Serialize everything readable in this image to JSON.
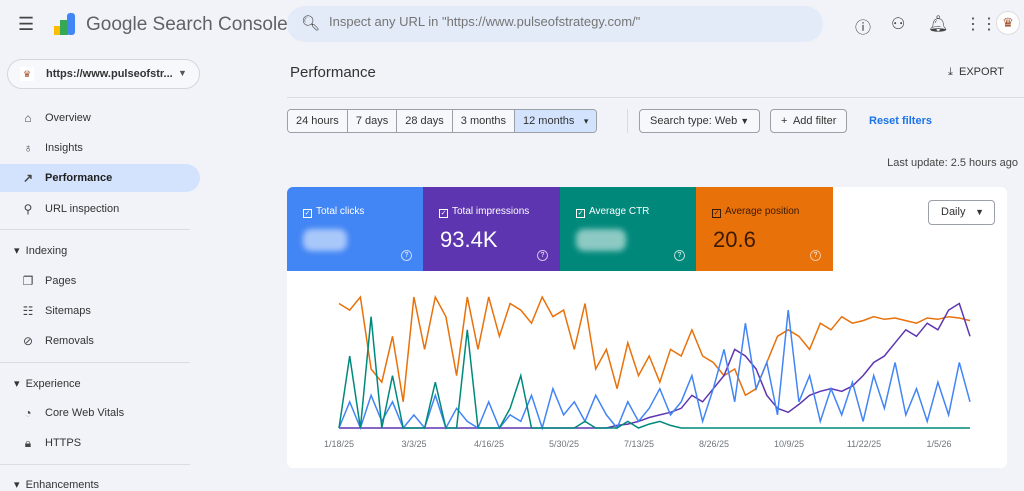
{
  "header": {
    "brand": "Google Search Console",
    "search_placeholder": "Inspect any URL in \"https://www.pulseofstrategy.com/\"",
    "icons": [
      "help-icon",
      "manage-users-icon",
      "notifications-icon",
      "apps-grid-icon",
      "avatar"
    ]
  },
  "property": {
    "label": "https://www.pulseofstr..."
  },
  "sidebar": {
    "items": [
      {
        "label": "Overview",
        "icon": "home-icon"
      },
      {
        "label": "Insights",
        "icon": "lightbulb-icon"
      },
      {
        "label": "Performance",
        "icon": "trending-icon",
        "active": true
      },
      {
        "label": "URL inspection",
        "icon": "search-icon"
      }
    ],
    "sections": [
      {
        "label": "Indexing",
        "items": [
          {
            "label": "Pages",
            "icon": "pages-icon"
          },
          {
            "label": "Sitemaps",
            "icon": "sitemap-icon"
          },
          {
            "label": "Removals",
            "icon": "removals-icon"
          }
        ]
      },
      {
        "label": "Experience",
        "items": [
          {
            "label": "Core Web Vitals",
            "icon": "speedometer-icon"
          },
          {
            "label": "HTTPS",
            "icon": "lock-icon"
          }
        ]
      },
      {
        "label": "Enhancements"
      }
    ]
  },
  "main": {
    "title": "Performance",
    "export_label": "EXPORT",
    "ranges": [
      "24 hours",
      "7 days",
      "28 days",
      "3 months",
      "12 months"
    ],
    "selected_range": "12 months",
    "search_type": "Search type: Web",
    "add_filter": "Add filter",
    "reset_filters": "Reset filters",
    "last_update": "Last update: 2.5 hours ago",
    "metrics": [
      {
        "label": "Total clicks",
        "value": "",
        "color": "#4285f4"
      },
      {
        "label": "Total impressions",
        "value": "93.4K",
        "color": "#5e35b1"
      },
      {
        "label": "Average CTR",
        "value": "",
        "color": "#00897b"
      },
      {
        "label": "Average position",
        "value": "20.6",
        "color": "#e8710a"
      }
    ],
    "granularity": "Daily"
  },
  "chart_data": {
    "type": "line",
    "x_ticks": [
      "1/18/25",
      "3/3/25",
      "4/16/25",
      "5/30/25",
      "7/13/25",
      "8/26/25",
      "10/9/25",
      "11/22/25",
      "1/5/26"
    ],
    "grid": false,
    "series": [
      {
        "metric": "Average position",
        "color": "#e8710a",
        "values": [
          95,
          90,
          100,
          45,
          35,
          70,
          20,
          100,
          60,
          100,
          85,
          40,
          100,
          60,
          100,
          70,
          95,
          90,
          80,
          100,
          85,
          90,
          60,
          95,
          45,
          60,
          30,
          65,
          40,
          55,
          35,
          60,
          55,
          75,
          55,
          50,
          40,
          45,
          25,
          30,
          50,
          70,
          75,
          70,
          60,
          80,
          75,
          85,
          80,
          82,
          85,
          83,
          84,
          82,
          80,
          84,
          83,
          85,
          84,
          82
        ]
      },
      {
        "metric": "Total impressions",
        "color": "#5e35b1",
        "values": [
          0,
          0,
          0,
          0,
          0,
          0,
          0,
          0,
          0,
          0,
          0,
          0,
          0,
          0,
          0,
          0,
          0,
          0,
          0,
          0,
          0,
          0,
          0,
          0,
          0,
          0,
          2,
          3,
          5,
          8,
          10,
          12,
          15,
          25,
          20,
          30,
          40,
          60,
          55,
          45,
          25,
          15,
          12,
          18,
          25,
          28,
          30,
          28,
          32,
          40,
          50,
          55,
          65,
          75,
          70,
          80,
          75,
          90,
          95,
          70
        ]
      },
      {
        "metric": "Total clicks",
        "color": "#4285f4",
        "values": [
          0,
          20,
          0,
          25,
          5,
          20,
          0,
          10,
          0,
          25,
          0,
          15,
          5,
          0,
          20,
          0,
          10,
          5,
          25,
          0,
          30,
          10,
          20,
          5,
          25,
          10,
          0,
          20,
          5,
          15,
          30,
          10,
          20,
          40,
          5,
          30,
          60,
          20,
          80,
          30,
          50,
          10,
          90,
          20,
          40,
          5,
          30,
          10,
          35,
          5,
          40,
          15,
          50,
          10,
          30,
          5,
          35,
          10,
          50,
          20
        ]
      },
      {
        "metric": "Average CTR",
        "color": "#00897b",
        "values": [
          0,
          55,
          0,
          85,
          0,
          40,
          0,
          0,
          0,
          35,
          0,
          0,
          75,
          0,
          0,
          0,
          15,
          40,
          0,
          0,
          0,
          0,
          0,
          5,
          0,
          0,
          0,
          5,
          0,
          3,
          5,
          2,
          0,
          0,
          0,
          0,
          0,
          0,
          0,
          0,
          0,
          0,
          0,
          0,
          0,
          0,
          0,
          0,
          0,
          0,
          0,
          0,
          0,
          0,
          0,
          0,
          0,
          0,
          0,
          0
        ]
      }
    ]
  }
}
